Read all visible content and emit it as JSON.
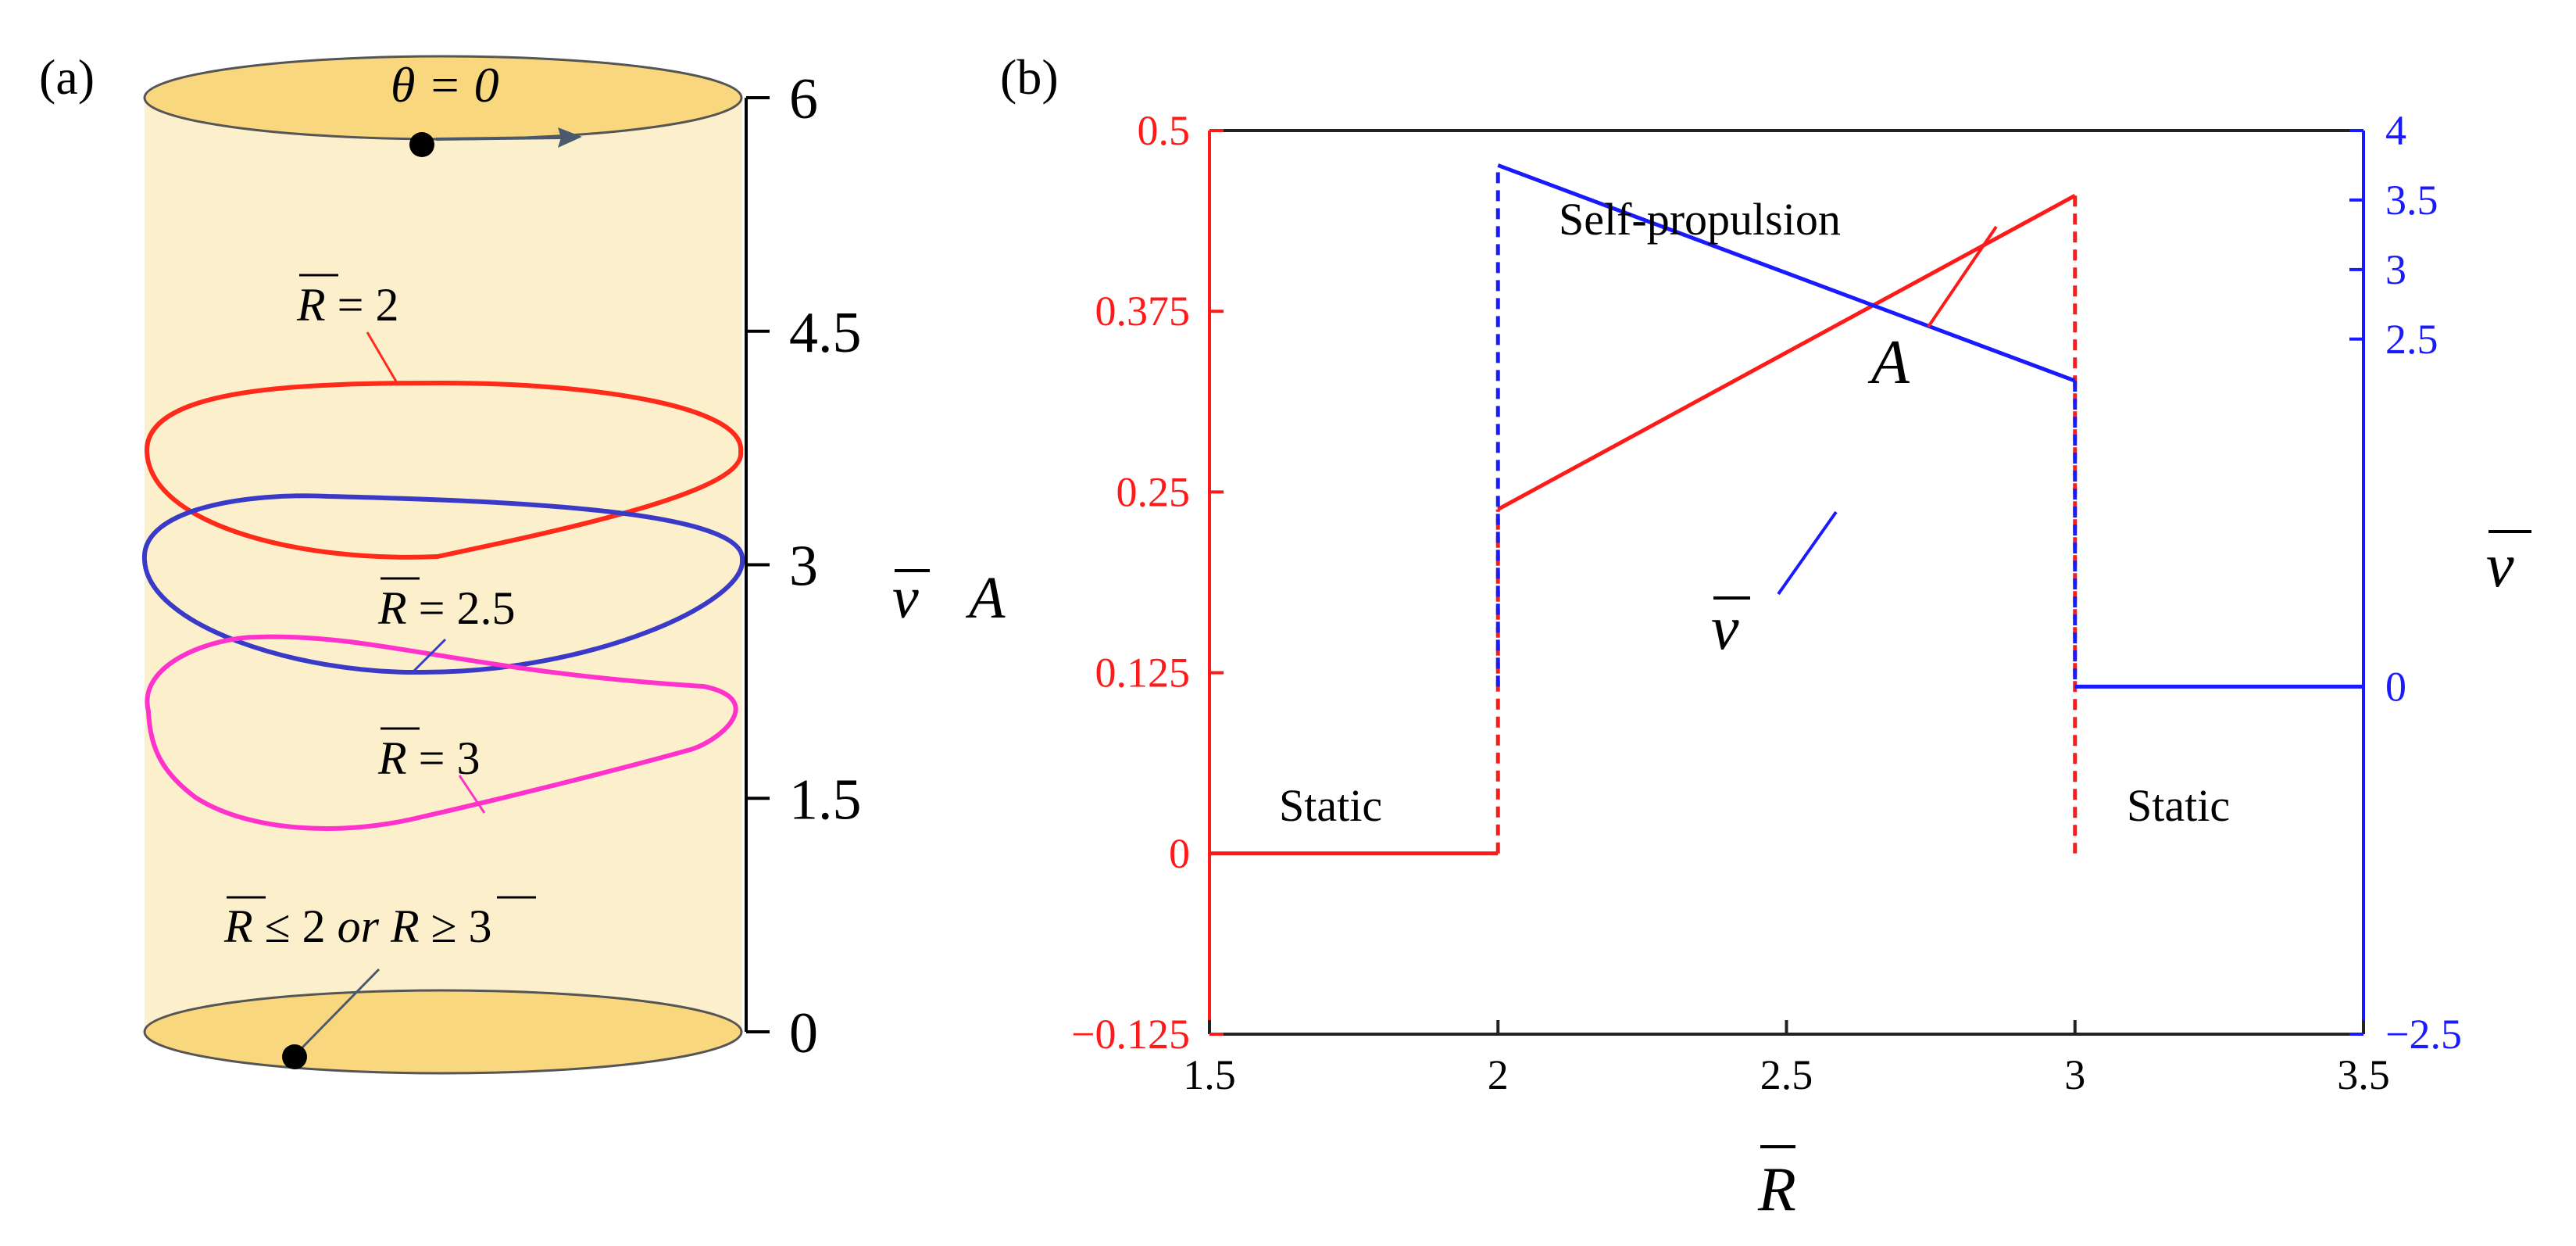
{
  "panel_a": {
    "label": "(a)",
    "theta_label": "θ = 0",
    "axis_label_v": "v",
    "axis_label_a": "A",
    "ticks": [
      "6",
      "4.5",
      "3",
      "1.5",
      "0"
    ],
    "tick_values": [
      6,
      4.5,
      3,
      1.5,
      0
    ],
    "loops": [
      {
        "label_sym": "R",
        "label_rest": " = 2",
        "color": "#ff2a1a"
      },
      {
        "label_sym": "R",
        "label_rest": " = 2.5",
        "color": "#3a3ac8"
      },
      {
        "label_sym": "R",
        "label_rest": " = 3",
        "color": "#ff33cc"
      }
    ],
    "bottom_note": {
      "r1": "R",
      "mid": " ≤ 2 ",
      "or": "or",
      "r2": "R",
      "end": " ≥ 3"
    },
    "colors": {
      "fill": "#fcefcc",
      "cap": "#f8d77f",
      "axis": "#000000",
      "arrow": "#4a5a6e"
    }
  },
  "chart_data": {
    "type": "line",
    "panel_label": "(b)",
    "xlabel": "R",
    "ylabel_left": "",
    "ylabel_right": "v",
    "xlim": [
      1.5,
      3.5
    ],
    "ylim_left": [
      -0.125,
      0.5
    ],
    "ylim_right": [
      -2.5,
      4
    ],
    "x_ticks": [
      "1.5",
      "2",
      "2.5",
      "3",
      "3.5"
    ],
    "x_tick_values": [
      1.5,
      2,
      2.5,
      3,
      3.5
    ],
    "y_left_ticks": [
      "0.5",
      "0.375",
      "0.25",
      "0.125",
      "0",
      "−0.125"
    ],
    "y_left_tick_values": [
      0.5,
      0.375,
      0.25,
      0.125,
      0,
      -0.125
    ],
    "y_right_ticks": [
      "4",
      "3.5",
      "3",
      "2.5",
      "0",
      "−2.5"
    ],
    "y_right_tick_values": [
      4,
      3.5,
      3,
      2.5,
      0,
      -2.5
    ],
    "series": [
      {
        "name": "A",
        "axis": "left",
        "color": "#ff1a1a",
        "segments": [
          {
            "style": "solid",
            "x": [
              1.5,
              2.0
            ],
            "y": [
              0,
              0
            ]
          },
          {
            "style": "dashed",
            "x": [
              2.0,
              2.0
            ],
            "y": [
              0,
              0.238
            ]
          },
          {
            "style": "solid",
            "x": [
              2.0,
              3.0
            ],
            "y": [
              0.238,
              0.455
            ]
          },
          {
            "style": "dashed",
            "x": [
              3.0,
              3.0
            ],
            "y": [
              0.455,
              0
            ]
          }
        ]
      },
      {
        "name": "v",
        "axis": "right",
        "color": "#1a1aff",
        "segments": [
          {
            "style": "dashed",
            "x": [
              2.0,
              2.0
            ],
            "y": [
              0,
              3.75
            ]
          },
          {
            "style": "solid",
            "x": [
              2.0,
              3.0
            ],
            "y": [
              3.75,
              2.2
            ]
          },
          {
            "style": "dashed",
            "x": [
              3.0,
              3.0
            ],
            "y": [
              2.2,
              0
            ]
          },
          {
            "style": "solid",
            "x": [
              3.0,
              3.5
            ],
            "y": [
              0,
              0
            ]
          }
        ]
      }
    ],
    "annotations": [
      "Self-propulsion",
      "Static",
      "Static"
    ]
  }
}
